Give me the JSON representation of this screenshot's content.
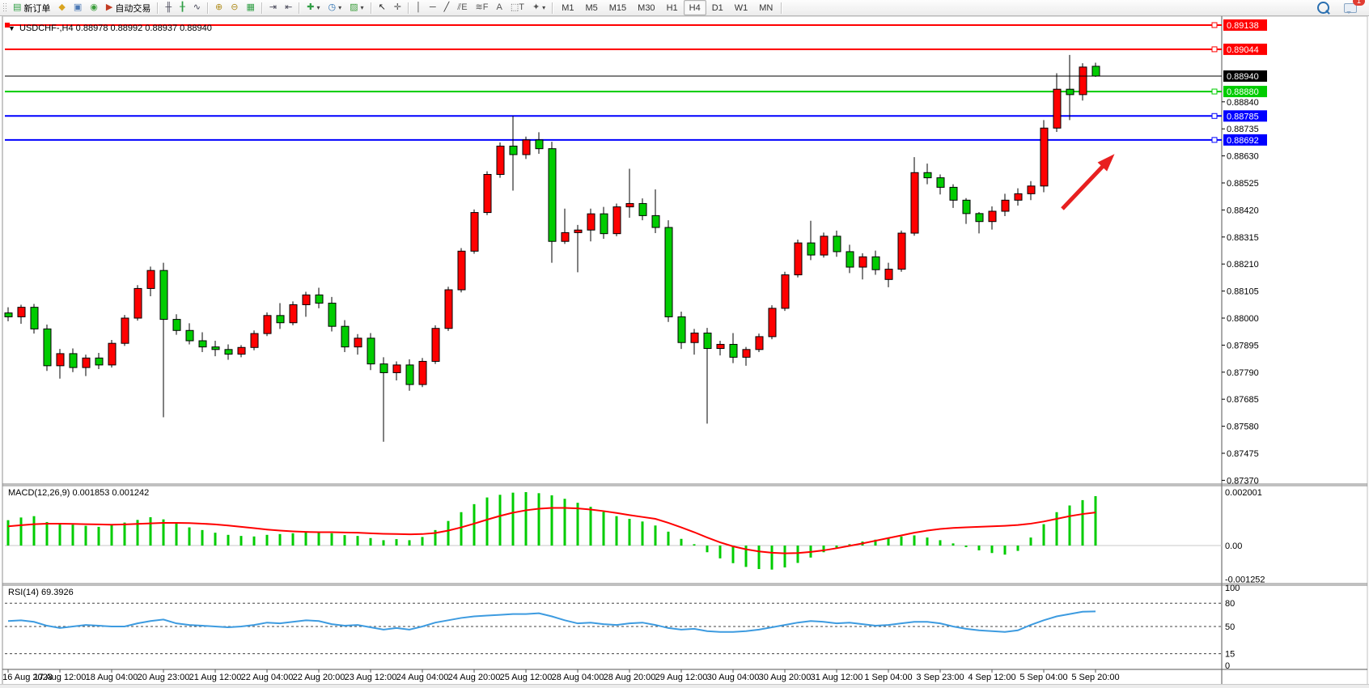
{
  "toolbar": {
    "notification_count": "1",
    "items": [
      {
        "type": "grip"
      },
      {
        "type": "button",
        "name": "new-order-button",
        "glyph": "▤",
        "glyph_color": "#2f9e44",
        "label": "新订单"
      },
      {
        "type": "button",
        "name": "gold-icon",
        "glyph": "◆",
        "glyph_color": "#d9a420"
      },
      {
        "type": "button",
        "name": "mql-community-icon",
        "glyph": "▣",
        "glyph_color": "#4a78b5"
      },
      {
        "type": "button",
        "name": "signal-icon",
        "glyph": "◉",
        "glyph_color": "#3a9d3a"
      },
      {
        "type": "button",
        "name": "auto-trading-button",
        "glyph": "▶",
        "glyph_color": "#c23b22",
        "label": "自动交易"
      },
      {
        "type": "sep"
      },
      {
        "type": "button",
        "name": "bar-chart-button",
        "glyph": "╫",
        "glyph_color": "#445"
      },
      {
        "type": "button",
        "name": "candlestick-chart-button",
        "glyph": "╂",
        "glyph_color": "#2f9e44"
      },
      {
        "type": "button",
        "name": "line-chart-button",
        "glyph": "∿",
        "glyph_color": "#445"
      },
      {
        "type": "sep"
      },
      {
        "type": "button",
        "name": "zoom-in-button",
        "glyph": "⊕",
        "glyph_color": "#b08d1e"
      },
      {
        "type": "button",
        "name": "zoom-out-button",
        "glyph": "⊖",
        "glyph_color": "#b08d1e"
      },
      {
        "type": "button",
        "name": "tile-windows-button",
        "glyph": "▦",
        "glyph_color": "#2f9e44"
      },
      {
        "type": "sep"
      },
      {
        "type": "button",
        "name": "auto-scroll-button",
        "glyph": "⇥",
        "glyph_color": "#445"
      },
      {
        "type": "button",
        "name": "chart-shift-button",
        "glyph": "⇤",
        "glyph_color": "#445"
      },
      {
        "type": "sep"
      },
      {
        "type": "button",
        "name": "new-chart-button",
        "glyph": "✚",
        "glyph_color": "#2f9e44",
        "dropdown": true
      },
      {
        "type": "button",
        "name": "period-selector-button",
        "glyph": "◷",
        "glyph_color": "#2a6fb0",
        "dropdown": true
      },
      {
        "type": "button",
        "name": "template-button",
        "glyph": "▨",
        "glyph_color": "#3a9d3a",
        "dropdown": true
      },
      {
        "type": "sep"
      },
      {
        "type": "button",
        "name": "cursor-button",
        "glyph": "↖",
        "glyph_color": "#222"
      },
      {
        "type": "button",
        "name": "crosshair-button",
        "glyph": "✛",
        "glyph_color": "#555"
      },
      {
        "type": "sep"
      },
      {
        "type": "button",
        "name": "vertical-line-button",
        "glyph": "│",
        "glyph_color": "#333"
      },
      {
        "type": "button",
        "name": "horizontal-line-button",
        "glyph": "─",
        "glyph_color": "#333"
      },
      {
        "type": "button",
        "name": "trendline-button",
        "glyph": "╱",
        "glyph_color": "#333"
      },
      {
        "type": "button",
        "name": "equidistant-channel-button",
        "glyph": "⫽E",
        "glyph_color": "#555"
      },
      {
        "type": "button",
        "name": "fibonacci-button",
        "glyph": "≋F",
        "glyph_color": "#555"
      },
      {
        "type": "button",
        "name": "text-button",
        "glyph": "A",
        "glyph_color": "#555"
      },
      {
        "type": "button",
        "name": "text-label-button",
        "glyph": "⬚T",
        "glyph_color": "#555"
      },
      {
        "type": "button",
        "name": "arrows-button",
        "glyph": "✦",
        "glyph_color": "#555",
        "dropdown": true
      },
      {
        "type": "sep"
      },
      {
        "type": "tf",
        "name": "timeframe-button-m1",
        "label": "M1"
      },
      {
        "type": "tf",
        "name": "timeframe-button-m5",
        "label": "M5"
      },
      {
        "type": "tf",
        "name": "timeframe-button-m15",
        "label": "M15"
      },
      {
        "type": "tf",
        "name": "timeframe-button-m30",
        "label": "M30"
      },
      {
        "type": "tf",
        "name": "timeframe-button-h1",
        "label": "H1"
      },
      {
        "type": "tf",
        "name": "timeframe-button-h4",
        "label": "H4",
        "active": true
      },
      {
        "type": "tf",
        "name": "timeframe-button-d1",
        "label": "D1"
      },
      {
        "type": "tf",
        "name": "timeframe-button-w1",
        "label": "W1"
      },
      {
        "type": "tf",
        "name": "timeframe-button-mn",
        "label": "MN"
      },
      {
        "type": "sep"
      }
    ]
  },
  "chart_data": {
    "type": "candlestick",
    "symbol": "USDCHF-",
    "timeframe": "H4",
    "title": "USDCHF-,H4",
    "collapse_glyph": "▼",
    "ohlc_line": "0.88978 0.88992 0.88937 0.88940",
    "open": 0.88978,
    "high": 0.88992,
    "low": 0.88937,
    "close": 0.8894,
    "bull_color": "#ff0000",
    "bear_color": "#00cc00",
    "wick_color": "#000000",
    "price_range": [
      0.87365,
      0.8916
    ],
    "current_price": {
      "value": 0.8894,
      "label": "0.88940",
      "color": "#000000"
    },
    "horizontal_lines": [
      {
        "label": "0.89138",
        "price": 0.89138,
        "color": "#ff0000",
        "left_handle": true
      },
      {
        "label": "0.89044",
        "price": 0.89044,
        "color": "#ff0000"
      },
      {
        "label": "0.88880",
        "price": 0.8888,
        "color": "#00cc00"
      },
      {
        "label": "0.88785",
        "price": 0.88785,
        "color": "#0000ff"
      },
      {
        "label": "0.88692",
        "price": 0.88692,
        "color": "#0000ff"
      }
    ],
    "price_axis_ticks": [
      "0.88840",
      "0.88735",
      "0.88630",
      "0.88525",
      "0.88420",
      "0.88315",
      "0.88210",
      "0.88105",
      "0.88000",
      "0.87895",
      "0.87790",
      "0.87685",
      "0.87580",
      "0.87475",
      "0.87370"
    ],
    "x_labels": [
      "16 Aug 2023",
      "17 Aug 12:00",
      "18 Aug 04:00",
      "20 Aug 23:00",
      "21 Aug 12:00",
      "22 Aug 04:00",
      "22 Aug 20:00",
      "23 Aug 12:00",
      "24 Aug 04:00",
      "24 Aug 20:00",
      "25 Aug 12:00",
      "28 Aug 04:00",
      "28 Aug 20:00",
      "29 Aug 12:00",
      "30 Aug 04:00",
      "30 Aug 20:00",
      "31 Aug 12:00",
      "1 Sep 04:00",
      "3 Sep 23:00",
      "4 Sep 12:00",
      "5 Sep 04:00",
      "5 Sep 20:00"
    ],
    "candles": [
      [
        0.8802,
        0.88042,
        0.87988,
        0.88005
      ],
      [
        0.88005,
        0.88052,
        0.87978,
        0.88042
      ],
      [
        0.88042,
        0.88055,
        0.8794,
        0.87958
      ],
      [
        0.87958,
        0.87975,
        0.87795,
        0.87815
      ],
      [
        0.87815,
        0.8788,
        0.87765,
        0.87862
      ],
      [
        0.87862,
        0.87882,
        0.8779,
        0.87808
      ],
      [
        0.87808,
        0.87858,
        0.87775,
        0.87845
      ],
      [
        0.87845,
        0.87865,
        0.87802,
        0.87818
      ],
      [
        0.87818,
        0.87915,
        0.87808,
        0.87902
      ],
      [
        0.87902,
        0.88012,
        0.87892,
        0.88
      ],
      [
        0.88,
        0.88128,
        0.8799,
        0.88115
      ],
      [
        0.88115,
        0.882,
        0.88085,
        0.88185
      ],
      [
        0.88185,
        0.88215,
        0.87615,
        0.87995
      ],
      [
        0.87995,
        0.88015,
        0.87935,
        0.87952
      ],
      [
        0.87952,
        0.8798,
        0.87898,
        0.87912
      ],
      [
        0.87912,
        0.87945,
        0.87868,
        0.87888
      ],
      [
        0.87888,
        0.87912,
        0.87852,
        0.87878
      ],
      [
        0.87878,
        0.87898,
        0.87838,
        0.8786
      ],
      [
        0.8786,
        0.87895,
        0.87848,
        0.87886
      ],
      [
        0.87886,
        0.87952,
        0.87875,
        0.8794
      ],
      [
        0.8794,
        0.88022,
        0.8793,
        0.8801
      ],
      [
        0.8801,
        0.88058,
        0.87958,
        0.87982
      ],
      [
        0.87982,
        0.88065,
        0.87972,
        0.88052
      ],
      [
        0.88052,
        0.88102,
        0.88005,
        0.8809
      ],
      [
        0.8809,
        0.88118,
        0.88038,
        0.88058
      ],
      [
        0.88058,
        0.88082,
        0.87948,
        0.87968
      ],
      [
        0.87968,
        0.87992,
        0.87868,
        0.87888
      ],
      [
        0.87888,
        0.87938,
        0.87858,
        0.87922
      ],
      [
        0.87922,
        0.87942,
        0.87798,
        0.87822
      ],
      [
        0.87822,
        0.87848,
        0.8752,
        0.87788
      ],
      [
        0.87788,
        0.87832,
        0.87758,
        0.87818
      ],
      [
        0.87818,
        0.8784,
        0.87718,
        0.87742
      ],
      [
        0.87742,
        0.87845,
        0.87732,
        0.87832
      ],
      [
        0.87832,
        0.87972,
        0.87822,
        0.8796
      ],
      [
        0.8796,
        0.88122,
        0.8795,
        0.8811
      ],
      [
        0.8811,
        0.88272,
        0.881,
        0.8826
      ],
      [
        0.8826,
        0.88422,
        0.8825,
        0.8841
      ],
      [
        0.8841,
        0.8857,
        0.884,
        0.88558
      ],
      [
        0.88558,
        0.88682,
        0.88545,
        0.88668
      ],
      [
        0.88668,
        0.88785,
        0.88495,
        0.88635
      ],
      [
        0.88635,
        0.88705,
        0.88618,
        0.88692
      ],
      [
        0.88692,
        0.88722,
        0.88638,
        0.88658
      ],
      [
        0.88658,
        0.88685,
        0.88215,
        0.88298
      ],
      [
        0.88298,
        0.88425,
        0.88288,
        0.88332
      ],
      [
        0.88332,
        0.88362,
        0.88178,
        0.88342
      ],
      [
        0.88342,
        0.88425,
        0.88298,
        0.88405
      ],
      [
        0.88405,
        0.88432,
        0.88308,
        0.88328
      ],
      [
        0.88328,
        0.88445,
        0.88318,
        0.88432
      ],
      [
        0.88432,
        0.8858,
        0.8839,
        0.88445
      ],
      [
        0.88445,
        0.88465,
        0.8838,
        0.88398
      ],
      [
        0.88398,
        0.885,
        0.8833,
        0.88352
      ],
      [
        0.88352,
        0.8838,
        0.87985,
        0.88005
      ],
      [
        0.88005,
        0.88025,
        0.8788,
        0.87905
      ],
      [
        0.87905,
        0.87958,
        0.87858,
        0.87942
      ],
      [
        0.87942,
        0.87962,
        0.8759,
        0.87882
      ],
      [
        0.87882,
        0.87912,
        0.87855,
        0.87898
      ],
      [
        0.87898,
        0.87942,
        0.87825,
        0.87848
      ],
      [
        0.87848,
        0.87888,
        0.87815,
        0.87878
      ],
      [
        0.87878,
        0.8794,
        0.87868,
        0.87928
      ],
      [
        0.87928,
        0.8805,
        0.87918,
        0.88038
      ],
      [
        0.88038,
        0.8818,
        0.88028,
        0.88168
      ],
      [
        0.88168,
        0.88305,
        0.88158,
        0.88292
      ],
      [
        0.88292,
        0.88378,
        0.88225,
        0.88245
      ],
      [
        0.88245,
        0.88332,
        0.88235,
        0.88318
      ],
      [
        0.88318,
        0.8834,
        0.88238,
        0.88258
      ],
      [
        0.88258,
        0.88285,
        0.88175,
        0.88198
      ],
      [
        0.88198,
        0.88252,
        0.8815,
        0.88238
      ],
      [
        0.88238,
        0.88262,
        0.88168,
        0.88188
      ],
      [
        0.8815,
        0.88215,
        0.8812,
        0.8819
      ],
      [
        0.8819,
        0.8834,
        0.8818,
        0.8833
      ],
      [
        0.8833,
        0.88625,
        0.8832,
        0.88565
      ],
      [
        0.88565,
        0.886,
        0.8852,
        0.88545
      ],
      [
        0.88545,
        0.88558,
        0.8848,
        0.88508
      ],
      [
        0.88508,
        0.8852,
        0.88428,
        0.88458
      ],
      [
        0.88458,
        0.88466,
        0.88366,
        0.88406
      ],
      [
        0.88406,
        0.88412,
        0.88329,
        0.88375
      ],
      [
        0.88375,
        0.88434,
        0.88344,
        0.88415
      ],
      [
        0.88415,
        0.88483,
        0.88396,
        0.88458
      ],
      [
        0.88458,
        0.88504,
        0.88437,
        0.88483
      ],
      [
        0.88483,
        0.88532,
        0.88458,
        0.88513
      ],
      [
        0.88513,
        0.88769,
        0.88489,
        0.88738
      ],
      [
        0.88738,
        0.88951,
        0.88723,
        0.88889
      ],
      [
        0.88889,
        0.89022,
        0.88769,
        0.88868
      ],
      [
        0.88868,
        0.8899,
        0.88845,
        0.88975
      ],
      [
        0.88978,
        0.88992,
        0.88937,
        0.8894
      ]
    ],
    "macd": {
      "label": "MACD(12,26,9)",
      "value": "0.001853",
      "signal_value": "0.001242",
      "axis_labels": [
        "0.002001",
        "0.00",
        "-0.001252"
      ],
      "axis_values": [
        0.002001,
        0,
        -0.001252
      ],
      "histogram_color": "#00cc00",
      "signal_color": "#ff0000",
      "histogram": [
        0.00095,
        0.00105,
        0.0011,
        0.00088,
        0.00082,
        0.00078,
        0.00074,
        0.0007,
        0.00076,
        0.00086,
        0.00096,
        0.00106,
        0.00098,
        0.00082,
        0.00068,
        0.00058,
        0.00048,
        0.0004,
        0.00036,
        0.00034,
        0.0004,
        0.00043,
        0.00046,
        0.00049,
        0.00051,
        0.00046,
        0.00039,
        0.00036,
        0.00028,
        0.0002,
        0.00024,
        0.0002,
        0.00032,
        0.00058,
        0.00092,
        0.00125,
        0.00155,
        0.0018,
        0.0019,
        0.00198,
        0.002,
        0.00196,
        0.00188,
        0.00175,
        0.0016,
        0.00145,
        0.00126,
        0.0011,
        0.001,
        0.0009,
        0.00075,
        0.00052,
        0.00025,
        5e-05,
        -0.00025,
        -0.00048,
        -0.00066,
        -0.0008,
        -0.00088,
        -0.0009,
        -0.00082,
        -0.00065,
        -0.00045,
        -0.00025,
        -8e-05,
        5e-05,
        0.00015,
        0.00022,
        0.0003,
        0.00034,
        0.00038,
        0.0003,
        0.0002,
        8e-05,
        -6e-05,
        -0.00018,
        -0.00028,
        -0.00034,
        -0.0002,
        0.0003,
        0.0008,
        0.00125,
        0.0015,
        0.0017,
        0.00185
      ],
      "signal": [
        0.00072,
        0.00076,
        0.0008,
        0.00082,
        0.00082,
        0.00081,
        0.0008,
        0.00079,
        0.00078,
        0.00079,
        0.00081,
        0.00083,
        0.00085,
        0.00085,
        0.00084,
        0.00082,
        0.00079,
        0.00075,
        0.0007,
        0.00065,
        0.0006,
        0.00056,
        0.00053,
        0.00051,
        0.0005,
        0.0005,
        0.00049,
        0.00048,
        0.00046,
        0.00044,
        0.00043,
        0.00042,
        0.00043,
        0.00047,
        0.00056,
        0.00068,
        0.00082,
        0.00097,
        0.00111,
        0.00123,
        0.00132,
        0.00138,
        0.00141,
        0.00141,
        0.00139,
        0.00135,
        0.00129,
        0.00122,
        0.00114,
        0.00107,
        0.001,
        0.00085,
        0.00068,
        0.0005,
        0.0003,
        0.00012,
        -3e-05,
        -0.00014,
        -0.00022,
        -0.00027,
        -0.00029,
        -0.00028,
        -0.00024,
        -0.00018,
        -0.0001,
        -1e-05,
        8e-05,
        0.00018,
        0.00028,
        0.00038,
        0.00048,
        0.00056,
        0.00062,
        0.00066,
        0.00068,
        0.0007,
        0.00072,
        0.00074,
        0.00077,
        0.00082,
        0.0009,
        0.001,
        0.0011,
        0.00118,
        0.00124
      ]
    },
    "rsi": {
      "label": "RSI(14)",
      "value": "69.3926",
      "line_color": "#3d9be0",
      "levels": [
        80,
        50,
        15
      ],
      "axis_labels": [
        "100",
        "80",
        "50",
        "15",
        "0"
      ],
      "axis_values": [
        100,
        80,
        50,
        15,
        0
      ],
      "values": [
        57,
        58,
        56,
        51,
        48,
        50,
        52,
        51,
        50,
        50,
        54,
        57,
        59,
        54,
        52,
        51,
        50,
        49,
        50,
        52,
        55,
        54,
        56,
        58,
        57,
        53,
        51,
        52,
        49,
        46,
        48,
        46,
        50,
        55,
        58,
        61,
        63,
        64,
        65,
        66,
        66,
        67,
        63,
        58,
        54,
        55,
        53,
        52,
        54,
        55,
        52,
        48,
        46,
        47,
        44,
        43,
        43,
        44,
        46,
        49,
        52,
        55,
        57,
        56,
        54,
        55,
        53,
        51,
        52,
        54,
        56,
        56,
        54,
        50,
        47,
        45,
        44,
        43,
        45,
        52,
        58,
        63,
        66,
        69,
        69.39
      ]
    },
    "annotation_arrow": {
      "color": "#e82020",
      "from": [
        1313,
        258
      ],
      "to": [
        1372,
        196
      ]
    }
  }
}
